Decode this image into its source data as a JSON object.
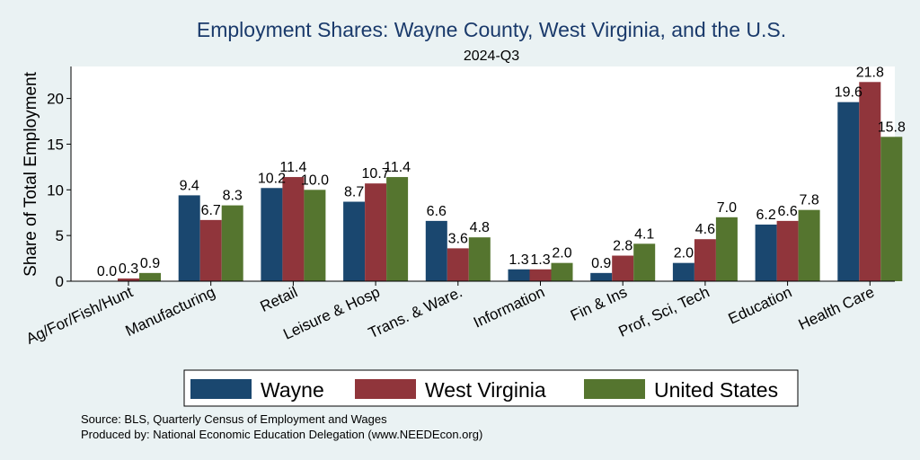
{
  "chart_data": {
    "type": "bar",
    "title": "Employment Shares: Wayne County, West Virginia, and the U.S.",
    "subtitle": "2024-Q3",
    "ylabel": "Share of Total Employment",
    "xlabel": "",
    "ylim": [
      0,
      23.5
    ],
    "yticks": [
      0,
      5,
      10,
      15,
      20
    ],
    "grid": true,
    "legend_position": "bottom",
    "categories": [
      "Ag/For/Fish/Hunt",
      "Manufacturing",
      "Retail",
      "Leisure & Hosp",
      "Trans. & Ware.",
      "Information",
      "Fin & Ins",
      "Prof, Sci, Tech",
      "Education",
      "Health Care"
    ],
    "series": [
      {
        "name": "Wayne",
        "color": "#1a476f",
        "values": [
          0.0,
          9.4,
          10.2,
          8.7,
          6.6,
          1.3,
          0.9,
          2.0,
          6.2,
          19.6
        ]
      },
      {
        "name": "West Virginia",
        "color": "#90353b",
        "values": [
          0.3,
          6.7,
          11.4,
          10.7,
          3.6,
          1.3,
          2.8,
          4.6,
          6.6,
          21.8
        ]
      },
      {
        "name": "United States",
        "color": "#55752f",
        "values": [
          0.9,
          8.3,
          10.0,
          11.4,
          4.8,
          2.0,
          4.1,
          7.0,
          7.8,
          15.8
        ]
      }
    ]
  },
  "notes": {
    "source": "Source: BLS, Quarterly Census of Employment and Wages",
    "produced_by": "Produced by: National Economic Education Delegation (www.NEEDEcon.org)"
  }
}
